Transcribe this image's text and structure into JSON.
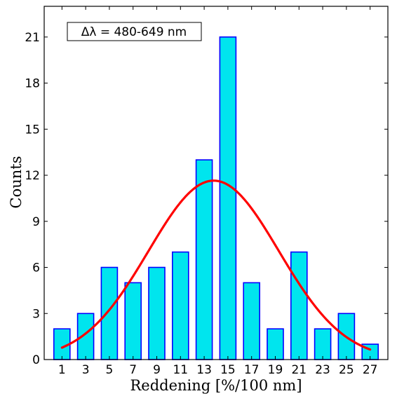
{
  "chart_data": {
    "type": "bar",
    "title": "",
    "xlabel": "Reddening [%/100 nm]",
    "ylabel": "Counts",
    "annotation": "Δλ = 480-649 nm",
    "categories": [
      "1",
      "3",
      "5",
      "7",
      "9",
      "11",
      "13",
      "15",
      "17",
      "19",
      "21",
      "23",
      "25",
      "27"
    ],
    "x": [
      1,
      3,
      5,
      7,
      9,
      11,
      13,
      15,
      17,
      19,
      21,
      23,
      25,
      27
    ],
    "values": [
      2,
      3,
      6,
      5,
      6,
      7,
      13,
      21,
      5,
      2,
      7,
      2,
      3,
      1
    ],
    "xlim": [
      -0.5,
      28.5
    ],
    "ylim": [
      0,
      23
    ],
    "yticks": [
      0,
      3,
      6,
      9,
      12,
      15,
      18,
      21
    ],
    "fit": {
      "type": "gaussian",
      "amplitude": 11.65,
      "mean": 13.8,
      "sigma": 5.5,
      "x_range": [
        1,
        27
      ]
    },
    "bar_color": "#00e5ee",
    "bar_edge_color": "#0000ff",
    "fit_color": "#ff0000",
    "grid": false
  }
}
